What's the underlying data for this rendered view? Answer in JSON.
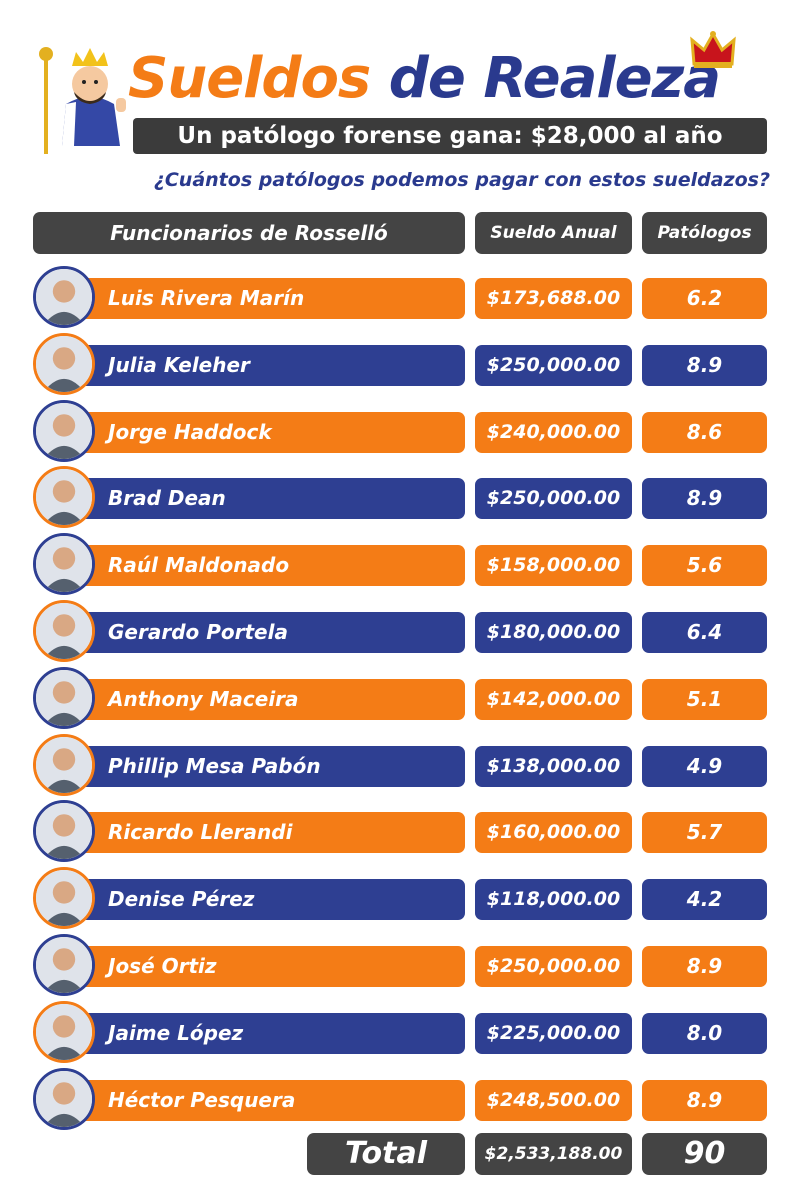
{
  "header": {
    "title_part1": "Sueldos",
    "title_part2": "de Realeza",
    "subtitle": "Un patólogo forense gana: $28,000 al año",
    "question": "¿Cuántos patólogos podemos pagar con estos sueldazos?"
  },
  "colors": {
    "orange": "#f47c16",
    "blue": "#2e3f92",
    "dark": "#444444"
  },
  "chart_data": {
    "type": "table",
    "columns": [
      "Funcionarios de Rosselló",
      "Sueldo Anual",
      "Patólogos"
    ],
    "rows": [
      {
        "name": "Luis Rivera Marín",
        "salary": "$173,688.00",
        "pathologists": "6.2"
      },
      {
        "name": "Julia Keleher",
        "salary": "$250,000.00",
        "pathologists": "8.9"
      },
      {
        "name": "Jorge Haddock",
        "salary": "$240,000.00",
        "pathologists": "8.6"
      },
      {
        "name": "Brad Dean",
        "salary": "$250,000.00",
        "pathologists": "8.9"
      },
      {
        "name": "Raúl Maldonado",
        "salary": "$158,000.00",
        "pathologists": "5.6"
      },
      {
        "name": "Gerardo Portela",
        "salary": "$180,000.00",
        "pathologists": "6.4"
      },
      {
        "name": "Anthony Maceira",
        "salary": "$142,000.00",
        "pathologists": "5.1"
      },
      {
        "name": "Phillip Mesa Pabón",
        "salary": "$138,000.00",
        "pathologists": "4.9"
      },
      {
        "name": "Ricardo Llerandi",
        "salary": "$160,000.00",
        "pathologists": "5.7"
      },
      {
        "name": "Denise Pérez",
        "salary": "$118,000.00",
        "pathologists": "4.2"
      },
      {
        "name": "José Ortiz",
        "salary": "$250,000.00",
        "pathologists": "8.9"
      },
      {
        "name": "Jaime López",
        "salary": "$225,000.00",
        "pathologists": "8.0"
      },
      {
        "name": "Héctor Pesquera",
        "salary": "$248,500.00",
        "pathologists": "8.9"
      }
    ],
    "total": {
      "label": "Total",
      "salary": "$2,533,188.00",
      "pathologists": "90"
    }
  }
}
